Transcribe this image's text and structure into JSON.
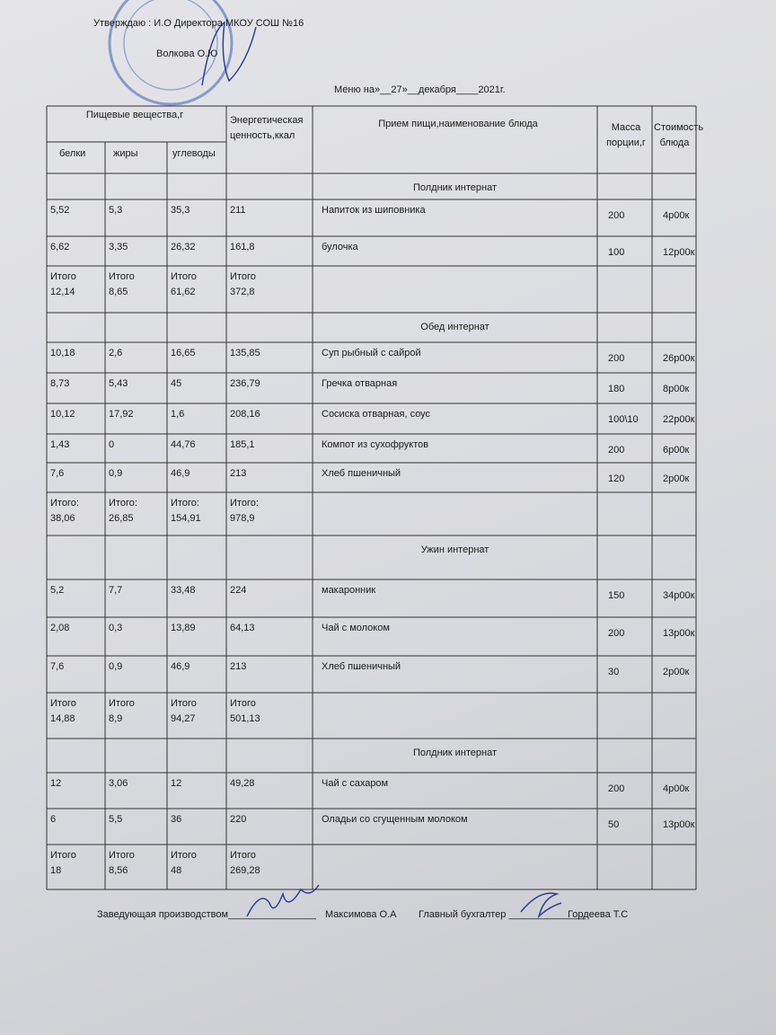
{
  "header": {
    "approve": "Утверждаю : И.О  Директора МКОУ СОШ №16",
    "director": "Волкова О.Ю",
    "menu_title": "Меню на»__27»__декабря____2021г."
  },
  "table": {
    "head": {
      "nutrients": "Пищевые вещества,г",
      "energy": "Энергетическая ценность,ккал",
      "dish": "Прием пищи,наименование блюда",
      "mass": "Масса порции,г",
      "cost": "Стоимость блюда",
      "proteins": "белки",
      "fats": "жиры",
      "carbs": "углеводы"
    },
    "rows": [
      {
        "section": "Полдник интернат"
      },
      {
        "cells": [
          "5,52",
          "5,3",
          "35,3",
          "211",
          "Напиток из шиповника",
          "200",
          "4р00к"
        ]
      },
      {
        "cells": [
          "6,62",
          "3,35",
          "26,32",
          "161,8",
          "булочка",
          "100",
          "12р00к"
        ]
      },
      {
        "cells": [
          "Итого\n12,14",
          "Итого\n8,65",
          "Итого\n61,62",
          "Итого\n372,8"
        ]
      },
      {
        "section": "Обед интернат"
      },
      {
        "cells": [
          "10,18",
          "2,6",
          "16,65",
          "135,85",
          "Суп рыбный с сайрой",
          "200",
          "26р00к"
        ]
      },
      {
        "cells": [
          "8,73",
          "5,43",
          "45",
          "236,79",
          "Гречка отварная",
          "180",
          "8р00к"
        ]
      },
      {
        "cells": [
          "10,12",
          "17,92",
          "1,6",
          "208,16",
          "Сосиска отварная, соус",
          "100\\10",
          "22р00к"
        ]
      },
      {
        "cells": [
          "1,43",
          "0",
          "44,76",
          "185,1",
          "Компот из сухофруктов",
          "200",
          "6р00к"
        ]
      },
      {
        "cells": [
          "7,6",
          "0,9",
          "46,9",
          "213",
          "Хлеб пшеничный",
          "120",
          "2р00к"
        ]
      },
      {
        "cells": [
          "Итого:\n38,06",
          "Итого:\n26,85",
          "Итого:\n154,91",
          "Итого:\n978,9"
        ]
      },
      {
        "section": "Ужин интернат"
      },
      {
        "cells": [
          "5,2",
          "7,7",
          "33,48",
          "224",
          "макаронник",
          "150",
          "34р00к"
        ]
      },
      {
        "cells": [
          "2,08",
          "0,3",
          "13,89",
          "64,13",
          "Чай с молоком",
          "200",
          "13р00к"
        ]
      },
      {
        "cells": [
          "7,6",
          "0,9",
          "46,9",
          "213",
          "Хлеб пшеничный",
          "30",
          "2р00к"
        ]
      },
      {
        "cells": [
          "Итого\n14,88",
          "Итого\n8,9",
          "Итого\n94,27",
          "Итого\n501,13"
        ]
      },
      {
        "section": "Полдник интернат"
      },
      {
        "cells": [
          "12",
          "3,06",
          "12",
          "49,28",
          "Чай с сахаром",
          "200",
          "4р00к"
        ]
      },
      {
        "cells": [
          "6",
          "5,5",
          "36",
          "220",
          "Оладьи со сгущенным молоком",
          "50",
          "13р00к"
        ]
      },
      {
        "cells": [
          "Итого\n18",
          "Итого\n8,56",
          "Итого\n48",
          "Итого\n269,28"
        ]
      }
    ]
  },
  "footer": {
    "manager_label": "Заведующая производством________________",
    "manager": "Максимова О.А",
    "accountant_label": "Главный бухгалтер ______________",
    "accountant": "Гордеева Т.С"
  }
}
